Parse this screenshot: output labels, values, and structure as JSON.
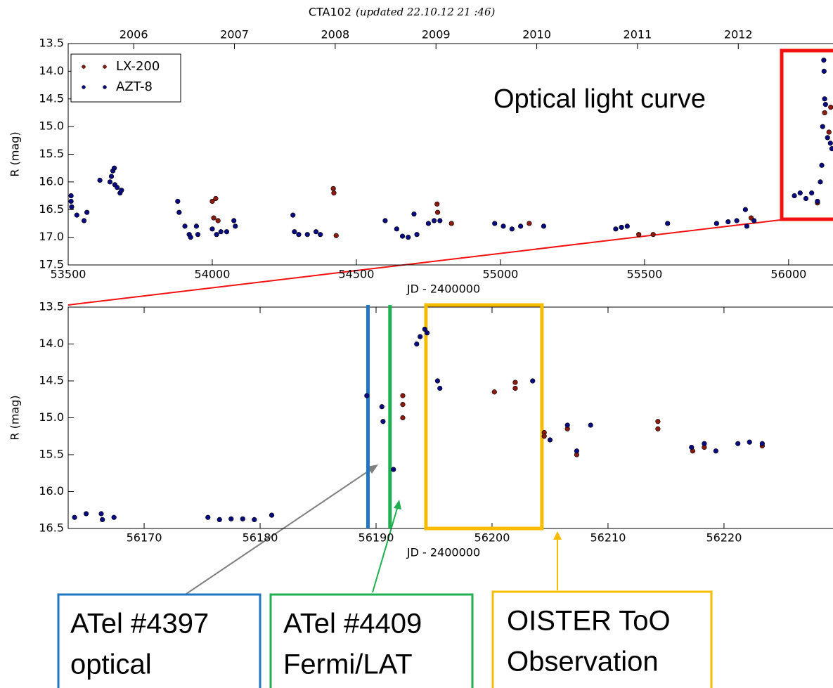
{
  "chart_data": [
    {
      "type": "scatter",
      "title": "CTA102",
      "subtitle": "(updated 22.10.12 21 :46)",
      "x_label": "JD - 2400000",
      "y_label": "R (mag)",
      "annotation": "Optical light curve",
      "xlim": [
        53500,
        56154
      ],
      "xticks": [
        53500,
        54000,
        54500,
        55000,
        55500,
        56000
      ],
      "x2lim": [
        2005.35,
        2012.94
      ],
      "x2ticks": [
        2006,
        2007,
        2008,
        2009,
        2010,
        2011,
        2012
      ],
      "ylim": [
        17.5,
        13.5
      ],
      "yticks": [
        13.5,
        {
          "value": 14,
          "label": "14.0"
        },
        14.5,
        {
          "value": 15,
          "label": "15.0"
        },
        15.5,
        {
          "value": 16,
          "label": "16.0"
        },
        16.5,
        {
          "value": 17,
          "label": "17.0"
        },
        17.5
      ],
      "legend": "upper left",
      "series": [
        {
          "name": "LX-200",
          "color": "#8b1a10",
          "x": [
            54000,
            54005,
            54012,
            54020,
            54420,
            54422,
            54430,
            54780,
            54782,
            54830,
            55100,
            55480,
            55530,
            55870,
            56100,
            56125,
            56140,
            56146
          ],
          "values": [
            16.35,
            16.65,
            16.3,
            16.7,
            16.12,
            16.2,
            16.97,
            16.4,
            16.55,
            16.75,
            16.75,
            16.95,
            16.95,
            16.65,
            16.38,
            14.75,
            15.1,
            14.65
          ]
        },
        {
          "name": "AZT-8",
          "color": "#0a0a80",
          "x": [
            53510,
            53510,
            53512,
            53530,
            53555,
            53565,
            53610,
            53645,
            53650,
            53655,
            53660,
            53662,
            53670,
            53680,
            53685,
            53880,
            53885,
            53905,
            53920,
            53925,
            53945,
            53950,
            54000,
            54015,
            54030,
            54050,
            54075,
            54080,
            54280,
            54285,
            54300,
            54330,
            54360,
            54375,
            54600,
            54640,
            54660,
            54680,
            54700,
            54710,
            54750,
            54770,
            54790,
            54980,
            55010,
            55040,
            55070,
            55150,
            55400,
            55420,
            55440,
            55580,
            55750,
            55790,
            55820,
            55850,
            55855,
            55880,
            56020,
            56040,
            56060,
            56080,
            56100,
            56110,
            56115,
            56118,
            56122,
            56123,
            56125,
            56128,
            56135,
            56145,
            56150
          ],
          "values": [
            16.25,
            16.35,
            16.45,
            16.6,
            16.7,
            16.55,
            15.97,
            16.0,
            15.9,
            15.8,
            15.75,
            16.05,
            16.1,
            16.2,
            16.15,
            16.35,
            16.55,
            16.8,
            16.95,
            17.0,
            16.8,
            16.95,
            16.85,
            16.95,
            16.9,
            16.9,
            16.7,
            16.8,
            16.6,
            16.9,
            16.95,
            16.95,
            16.9,
            16.95,
            16.7,
            16.85,
            16.98,
            17.0,
            16.58,
            16.95,
            16.75,
            16.7,
            16.7,
            16.75,
            16.8,
            16.85,
            16.8,
            16.8,
            16.85,
            16.82,
            16.8,
            16.75,
            16.75,
            16.72,
            16.7,
            16.5,
            16.8,
            16.7,
            16.25,
            16.2,
            16.3,
            16.2,
            16.35,
            16.0,
            15.7,
            15.0,
            13.8,
            14.0,
            14.5,
            14.6,
            15.2,
            15.3,
            15.4
          ]
        }
      ]
    },
    {
      "type": "scatter",
      "x_label": "JD - 2400000",
      "y_label": "R (mag)",
      "xlim": [
        56163.45,
        56229.4
      ],
      "xticks": [
        56170,
        56180,
        56190,
        56200,
        56210,
        56220
      ],
      "ylim": [
        16.5,
        13.5
      ],
      "yticks": [
        13.5,
        {
          "value": 14,
          "label": "14.0"
        },
        14.5,
        {
          "value": 15,
          "label": "15.0"
        },
        15.5,
        {
          "value": 16,
          "label": "16.0"
        },
        16.5
      ],
      "series": [
        {
          "name": "LX-200",
          "color": "#8b1a10",
          "x": [
            56192.3,
            56192.3,
            56192.3,
            56200.2,
            56202,
            56202,
            56204.5,
            56204.5,
            56206.5,
            56207.3,
            56214.3,
            56214.3,
            56217.3,
            56218.3,
            56223.3
          ],
          "values": [
            14.7,
            14.82,
            15.0,
            14.65,
            14.52,
            14.6,
            15.2,
            15.25,
            15.15,
            15.5,
            15.05,
            15.15,
            15.45,
            15.4,
            15.38
          ]
        },
        {
          "name": "AZT-8",
          "color": "#0a0a80",
          "x": [
            56164,
            56165,
            56166.3,
            56166.4,
            56167.4,
            56175.5,
            56176.5,
            56177.5,
            56178.5,
            56179.5,
            56181,
            56189.2,
            56190.5,
            56190.6,
            56191.5,
            56193.5,
            56193.8,
            56194.2,
            56194.4,
            56195.3,
            56195.5,
            56203.5,
            56205,
            56206.5,
            56207.3,
            56208.5,
            56217.2,
            56218.3,
            56219.3,
            56221.2,
            56222.2,
            56223.3
          ],
          "values": [
            16.35,
            16.3,
            16.3,
            16.38,
            16.35,
            16.35,
            16.38,
            16.37,
            16.37,
            16.38,
            16.32,
            14.7,
            14.85,
            15.05,
            15.7,
            14.0,
            13.9,
            13.8,
            13.85,
            14.5,
            14.6,
            14.5,
            15.3,
            15.1,
            15.45,
            15.1,
            15.4,
            15.35,
            15.45,
            15.35,
            15.33,
            15.35
          ]
        }
      ],
      "events": [
        {
          "label": [
            "ATel #4397",
            "optical"
          ],
          "x": 56189.3,
          "color": "#1f77c4"
        },
        {
          "label": [
            "ATel #4409",
            "Fermi/LAT"
          ],
          "x": 56191.2,
          "color": "#1fae50"
        }
      ],
      "window": {
        "label": [
          "OISTER ToO",
          "Observation"
        ],
        "xrange": [
          56194.3,
          56204.3
        ],
        "color": "#f5bc00"
      }
    }
  ]
}
